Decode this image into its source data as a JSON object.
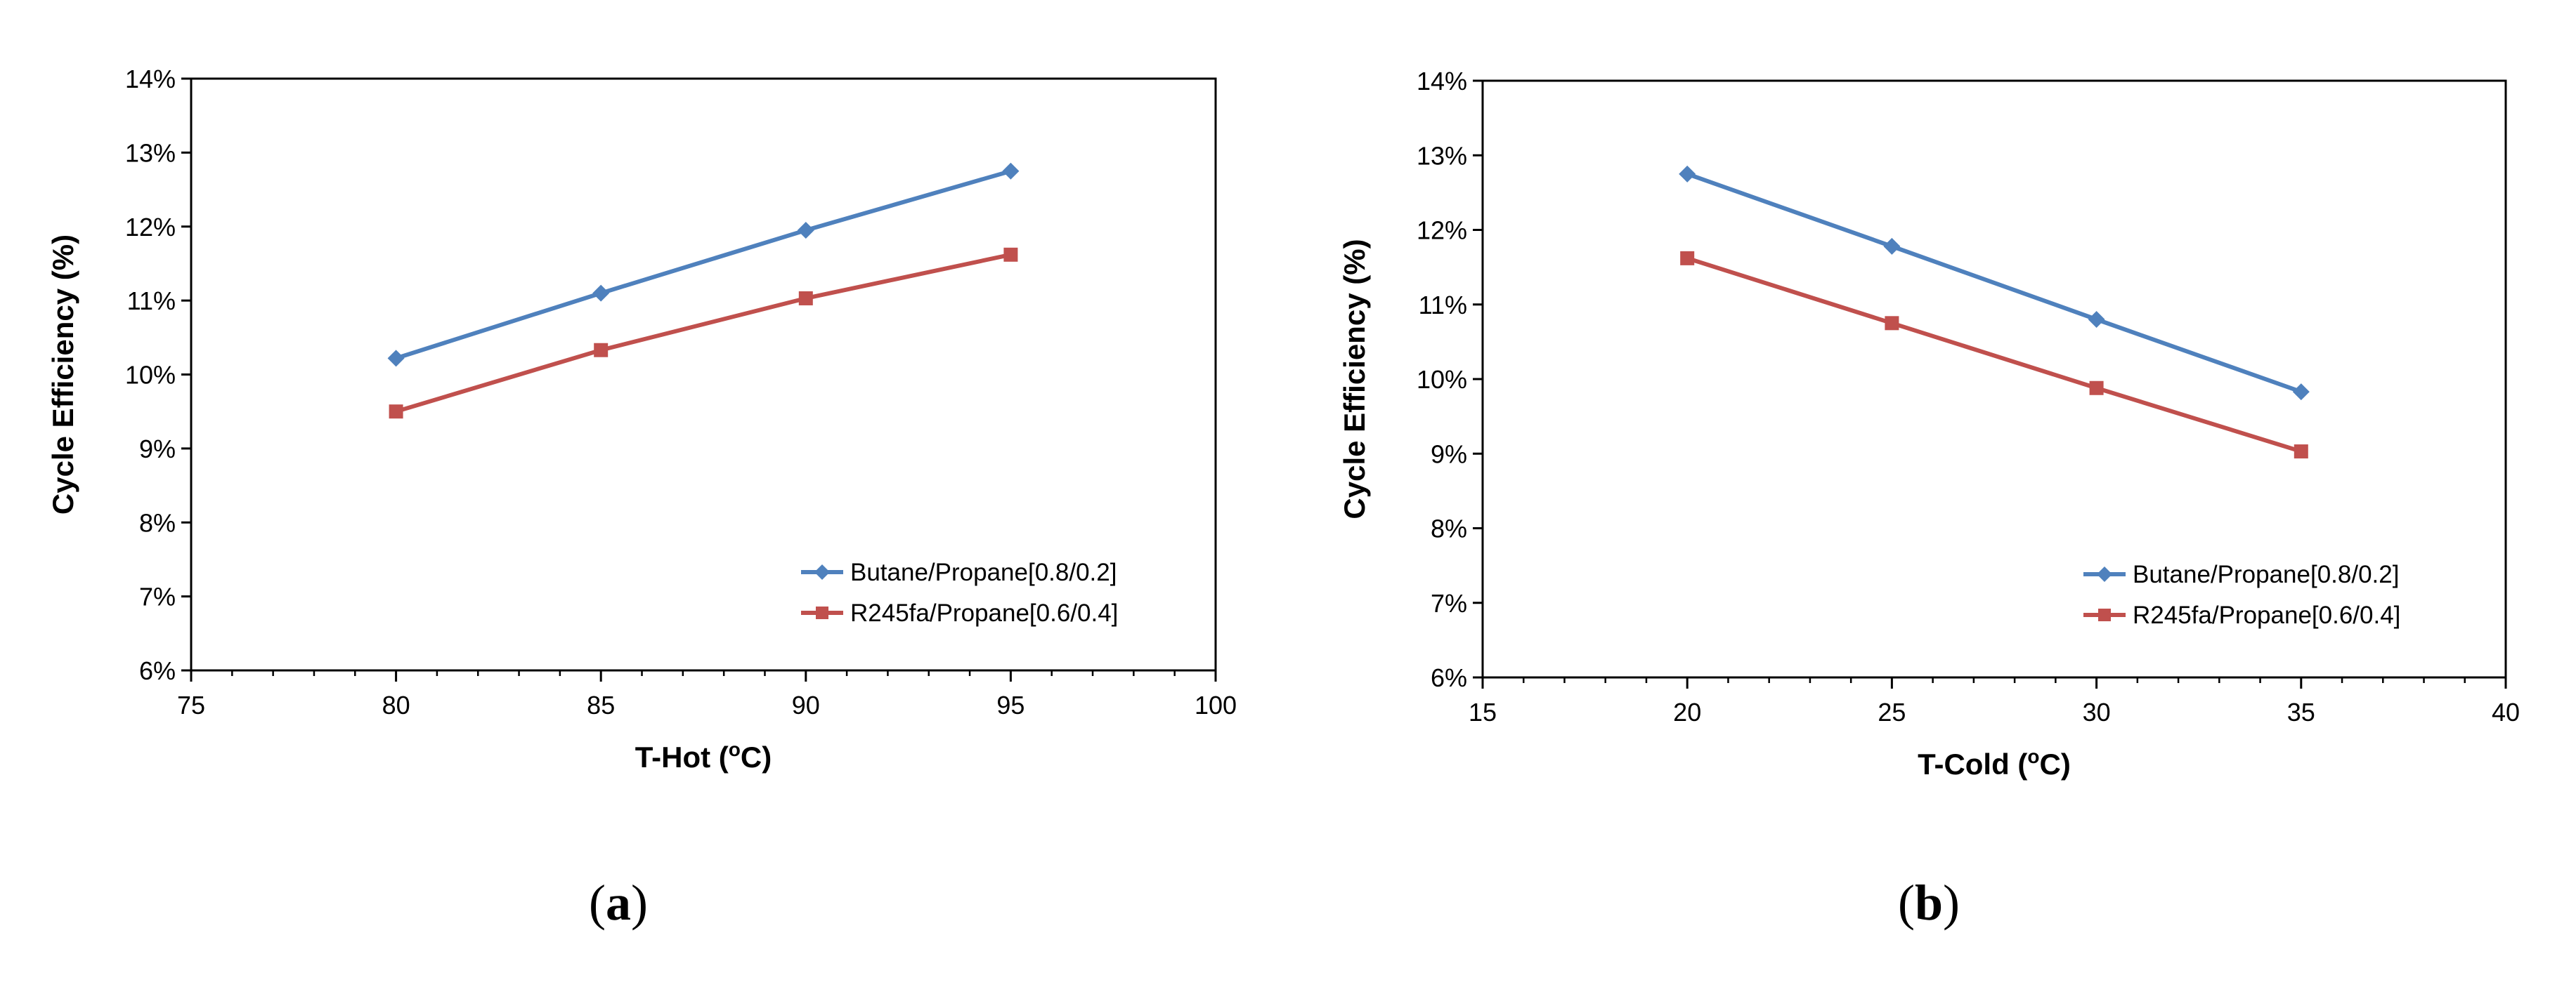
{
  "chart_data": [
    {
      "type": "line",
      "panel": "a",
      "panel_label_open": "(",
      "panel_label_letter": "a",
      "panel_label_close": ")",
      "xlabel_main": "T-Hot (",
      "xlabel_sup": "o",
      "xlabel_end": "C)",
      "ylabel": "Cycle Efficiency (%)",
      "xlim": [
        75,
        100
      ],
      "ylim": [
        6,
        14
      ],
      "xticks": [
        75,
        80,
        85,
        90,
        95,
        100
      ],
      "xtick_labels": [
        "75",
        "80",
        "85",
        "90",
        "95",
        "100"
      ],
      "yticks": [
        6,
        7,
        8,
        9,
        10,
        11,
        12,
        13,
        14
      ],
      "ytick_labels": [
        "6%",
        "7%",
        "8%",
        "9%",
        "10%",
        "11%",
        "12%",
        "13%",
        "14%"
      ],
      "x_minor_step": 1,
      "grid": false,
      "legend_position": "bottom-right",
      "series": [
        {
          "name": "Butane/Propane[0.8/0.2]",
          "color": "#4F81BD",
          "marker": "diamond",
          "x": [
            80,
            85,
            90,
            95
          ],
          "values": [
            10.22,
            11.1,
            11.95,
            12.75
          ]
        },
        {
          "name": "R245fa/Propane[0.6/0.4]",
          "color": "#C0504D",
          "marker": "square",
          "x": [
            80,
            85,
            90,
            95
          ],
          "values": [
            9.5,
            10.33,
            11.03,
            11.62
          ]
        }
      ]
    },
    {
      "type": "line",
      "panel": "b",
      "panel_label_open": "(",
      "panel_label_letter": "b",
      "panel_label_close": ")",
      "xlabel_main": "T-Cold (",
      "xlabel_sup": "o",
      "xlabel_end": "C)",
      "ylabel": "Cycle Efficiency (%)",
      "xlim": [
        15,
        40
      ],
      "ylim": [
        6,
        14
      ],
      "xticks": [
        15,
        20,
        25,
        30,
        35,
        40
      ],
      "xtick_labels": [
        "15",
        "20",
        "25",
        "30",
        "35",
        "40"
      ],
      "yticks": [
        6,
        7,
        8,
        9,
        10,
        11,
        12,
        13,
        14
      ],
      "ytick_labels": [
        "6%",
        "7%",
        "8%",
        "9%",
        "10%",
        "11%",
        "12%",
        "13%",
        "14%"
      ],
      "x_minor_step": 1,
      "grid": false,
      "legend_position": "bottom-right",
      "series": [
        {
          "name": "Butane/Propane[0.8/0.2]",
          "color": "#4F81BD",
          "marker": "diamond",
          "x": [
            20,
            25,
            30,
            35
          ],
          "values": [
            12.75,
            11.78,
            10.8,
            9.83
          ]
        },
        {
          "name": "R245fa/Propane[0.6/0.4]",
          "color": "#C0504D",
          "marker": "square",
          "x": [
            20,
            25,
            30,
            35
          ],
          "values": [
            11.62,
            10.75,
            9.88,
            9.03
          ]
        }
      ]
    }
  ]
}
